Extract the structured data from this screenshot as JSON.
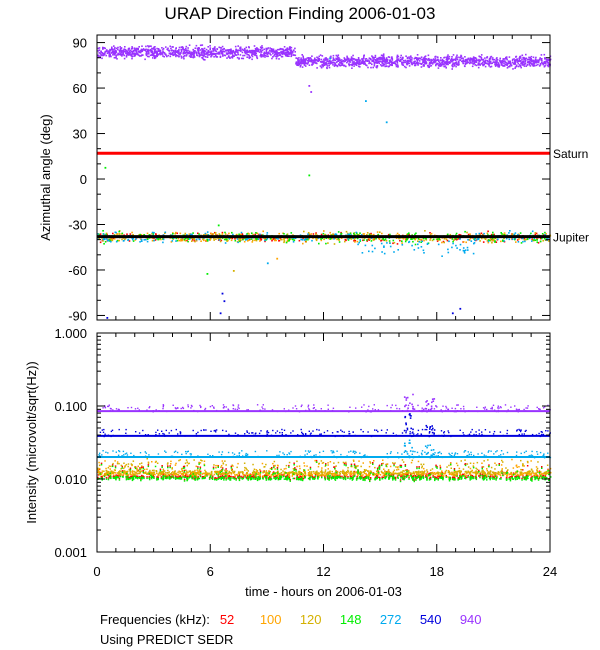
{
  "header": {
    "title": "URAP Direction Finding  2006-01-03"
  },
  "legend": {
    "label": "Frequencies (kHz):",
    "items": [
      {
        "freq": "52",
        "color": "#ff0000"
      },
      {
        "freq": "100",
        "color": "#ffa500"
      },
      {
        "freq": "120",
        "color": "#d4b000"
      },
      {
        "freq": "148",
        "color": "#00ee00"
      },
      {
        "freq": "272",
        "color": "#00aaee"
      },
      {
        "freq": "540",
        "color": "#0000dd"
      },
      {
        "freq": "940",
        "color": "#9933ff"
      }
    ]
  },
  "footer": {
    "note": "Using PREDICT SEDR"
  },
  "chart_data": [
    {
      "type": "scatter",
      "title": "URAP Direction Finding  2006-01-03",
      "xlabel": "time - hours on 2006-01-03",
      "ylabel": "Azimuthal angle (deg)",
      "xlim": [
        0,
        24
      ],
      "ylim": [
        -93,
        95
      ],
      "xticks": [
        0,
        6,
        12,
        18,
        24
      ],
      "yticks": [
        -90,
        -60,
        -30,
        0,
        30,
        60,
        90
      ],
      "yticklabels": [
        "-90",
        "-60",
        "-30",
        "0",
        "30",
        "60",
        "90"
      ],
      "reference_lines": [
        {
          "name": "Saturn",
          "value": 17,
          "color": "#ff0000"
        },
        {
          "name": "Jupiter",
          "value": -38,
          "color": "#000000"
        }
      ],
      "bands": [
        {
          "series": "940",
          "segments": [
            {
              "x": [
                0,
                10.5
              ],
              "center": 84,
              "spread": 4
            },
            {
              "x": [
                10.5,
                24
              ],
              "center": 78,
              "spread": 4
            }
          ]
        },
        {
          "series": "52-272",
          "segments": [
            {
              "x": [
                0,
                24
              ],
              "center": -38,
              "spread": 5
            }
          ]
        }
      ]
    },
    {
      "type": "line",
      "ylabel": "Intensity (microvolt/sqrt(Hz))",
      "xlabel": "time - hours on 2006-01-03",
      "xlim": [
        0,
        24
      ],
      "ylim": [
        0.001,
        1.0
      ],
      "yscale": "log",
      "xticks": [
        0,
        6,
        12,
        18,
        24
      ],
      "yticks": [
        0.001,
        0.01,
        0.1,
        1.0
      ],
      "yticklabels": [
        "0.001",
        "0.010",
        "0.100",
        "1.000"
      ],
      "series": [
        {
          "name": "940",
          "baseline": 0.085
        },
        {
          "name": "540",
          "baseline": 0.039
        },
        {
          "name": "272",
          "baseline": 0.02
        },
        {
          "name": "120",
          "baseline": 0.0125
        },
        {
          "name": "100",
          "baseline": 0.012
        },
        {
          "name": "52",
          "baseline": 0.011
        },
        {
          "name": "148",
          "baseline": 0.0105
        }
      ],
      "peaks": [
        {
          "x": 16.5,
          "series": "940",
          "value": 0.15
        },
        {
          "x": 17.6,
          "series": "940",
          "value": 0.13
        },
        {
          "x": 16.5,
          "series": "540",
          "value": 0.08
        },
        {
          "x": 17.6,
          "series": "540",
          "value": 0.06
        },
        {
          "x": 16.5,
          "series": "272",
          "value": 0.035
        },
        {
          "x": 17.6,
          "series": "272",
          "value": 0.03
        }
      ]
    }
  ]
}
